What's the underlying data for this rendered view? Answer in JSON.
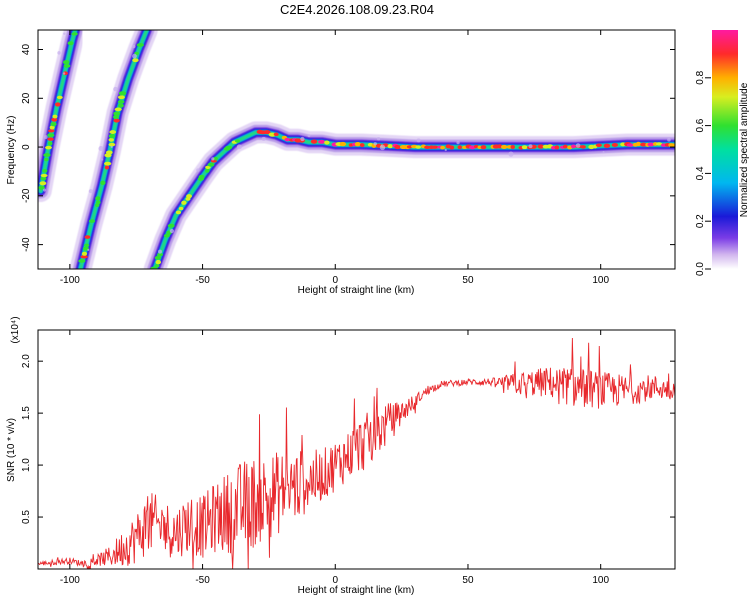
{
  "title": "C2E4.2026.108.09.23.R04",
  "colors": {
    "snr_line": "#e8282c",
    "axis": "#000000",
    "background": "#ffffff"
  },
  "chart_data": [
    {
      "type": "heatmap",
      "title": "C2E4.2026.108.09.23.R04",
      "xlabel": "Height of straight line (km)",
      "ylabel": "Frequency (Hz)",
      "xlim": [
        -112,
        128
      ],
      "ylim": [
        -50,
        48
      ],
      "xticks": [
        -100,
        -50,
        0,
        50,
        100
      ],
      "yticks": [
        -40,
        -20,
        0,
        20,
        40
      ],
      "colorbar": {
        "label": "Normalized spectral amplitude",
        "range": [
          0,
          1
        ],
        "ticks": [
          "0.0",
          "0.2",
          "0.4",
          "0.6",
          "0.8"
        ],
        "colormap": "rainbow (white-violet-blue-cyan-green-yellow-red-magenta)"
      },
      "series": [
        {
          "points": [
            [
              -111,
              -18
            ],
            [
              -108,
              0
            ],
            [
              -105,
              16
            ],
            [
              -102,
              30
            ],
            [
              -99,
              44
            ],
            [
              -98,
              48
            ]
          ]
        },
        {
          "points": [
            [
              -96,
              -50
            ],
            [
              -92,
              -32
            ],
            [
              -88,
              -16
            ],
            [
              -85,
              -2
            ],
            [
              -82,
              14
            ],
            [
              -78,
              28
            ],
            [
              -74,
              40
            ],
            [
              -71,
              48
            ]
          ]
        },
        {
          "points": [
            [
              -68,
              -50
            ],
            [
              -64,
              -38
            ],
            [
              -60,
              -28
            ],
            [
              -55,
              -20
            ],
            [
              -50,
              -12
            ],
            [
              -46,
              -6
            ],
            [
              -42,
              -2
            ],
            [
              -38,
              2
            ],
            [
              -34,
              4
            ],
            [
              -30,
              6
            ],
            [
              -26,
              6
            ],
            [
              -22,
              5
            ],
            [
              -18,
              3
            ],
            [
              -14,
              3
            ],
            [
              -10,
              2
            ],
            [
              -5,
              2
            ],
            [
              0,
              1
            ],
            [
              10,
              1
            ],
            [
              30,
              0
            ],
            [
              50,
              0
            ],
            [
              70,
              0
            ],
            [
              90,
              0
            ],
            [
              110,
              1
            ],
            [
              128,
              1
            ]
          ]
        }
      ]
    },
    {
      "type": "line",
      "xlabel": "Height of straight line (km)",
      "ylabel": "SNR (10 * v/v)",
      "y_multiplier": "(x10⁴)",
      "xlim": [
        -112,
        128
      ],
      "ylim": [
        0,
        2.3
      ],
      "xticks": [
        -100,
        -50,
        0,
        50,
        100
      ],
      "yticks": [
        0.5,
        1.0,
        1.5,
        2.0
      ],
      "series": [
        {
          "x": [
            -112,
            -100,
            -95,
            -90,
            -85,
            -80,
            -75,
            -70,
            -65,
            -60,
            -55,
            -50,
            -45,
            -40,
            -35,
            -30,
            -25,
            -20,
            -15,
            -10,
            -5,
            0,
            5,
            10,
            15,
            20,
            25,
            30,
            35,
            40,
            50,
            60,
            70,
            80,
            90,
            100,
            110,
            120,
            128
          ],
          "y": [
            0.05,
            0.08,
            0.05,
            0.08,
            0.12,
            0.2,
            0.3,
            0.45,
            0.4,
            0.35,
            0.45,
            0.4,
            0.5,
            0.55,
            0.6,
            0.65,
            0.7,
            0.75,
            0.8,
            0.85,
            0.9,
            1.0,
            1.1,
            1.2,
            1.3,
            1.4,
            1.5,
            1.62,
            1.72,
            1.78,
            1.8,
            1.8,
            1.78,
            1.8,
            1.75,
            1.72,
            1.72,
            1.75,
            1.72
          ],
          "noise": [
            0.02,
            0.03,
            0.03,
            0.05,
            0.1,
            0.18,
            0.25,
            0.3,
            0.28,
            0.25,
            0.3,
            0.3,
            0.35,
            0.4,
            0.45,
            0.45,
            0.42,
            0.4,
            0.35,
            0.3,
            0.25,
            0.25,
            0.25,
            0.28,
            0.25,
            0.2,
            0.12,
            0.06,
            0.04,
            0.03,
            0.03,
            0.04,
            0.12,
            0.15,
            0.2,
            0.18,
            0.15,
            0.12,
            0.1
          ]
        }
      ]
    }
  ]
}
